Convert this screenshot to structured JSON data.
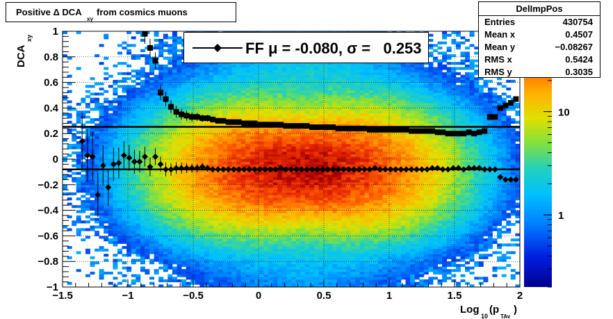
{
  "title_box": {
    "main": "Positive Δ DCA",
    "sub": "xy",
    "suffix": "from cosmics muons"
  },
  "stats": {
    "name": "DelImpPos",
    "rows": [
      {
        "label": "Entries",
        "value": "430754"
      },
      {
        "label": "Mean x",
        "value": "0.4507"
      },
      {
        "label": "Mean y",
        "value": "−0.08267"
      },
      {
        "label": "RMS x",
        "value": "0.5424"
      },
      {
        "label": "RMS y",
        "value": "0.3035"
      }
    ]
  },
  "legend": {
    "text": "FF μ = -0.080, σ =   0.253"
  },
  "chart_data": {
    "type": "heatmap",
    "x_range": [
      -1.5,
      2
    ],
    "y_range": [
      -1,
      1
    ],
    "ylabel": "DCA",
    "ylabel_sub": "xy",
    "xlabel": "Log",
    "xlabel_sub": "10",
    "xlabel_rest": "(p",
    "xlabel_sub2": "TAv",
    "xlabel_end": ")",
    "x_ticks": [
      "−1.5",
      "−1",
      "−0.5",
      "0",
      "0.5",
      "1",
      "1.5",
      "2"
    ],
    "x_tick_values": [
      -1.5,
      -1,
      -0.5,
      0,
      0.5,
      1,
      1.5,
      2
    ],
    "y_ticks": [
      "−1",
      "−0.8",
      "−0.6",
      "−0.4",
      "−0.2",
      "0",
      "0.2",
      "0.4",
      "0.6",
      "0.8",
      "1"
    ],
    "y_tick_values": [
      -1,
      -0.8,
      -0.6,
      -0.4,
      -0.2,
      0,
      0.2,
      0.4,
      0.6,
      0.8,
      1
    ],
    "colorbar_ticks": [
      "1",
      "10"
    ],
    "colorbar_tick_values": [
      1,
      10
    ],
    "colorbar_range": [
      0.2,
      60
    ],
    "log_z": true,
    "grid": true,
    "reference_lines": [
      0.253,
      -0.08
    ],
    "series": [
      {
        "marker": "square",
        "x": [
          -0.87,
          -0.83,
          -0.79,
          -0.75,
          -0.71,
          -0.67,
          -0.63,
          -0.59,
          -0.55,
          -0.51,
          -0.47,
          -0.43,
          -0.39,
          -0.35,
          -0.31,
          -0.27,
          -0.23,
          -0.19,
          -0.15,
          -0.11,
          -0.07,
          -0.03,
          0.01,
          0.05,
          0.09,
          0.13,
          0.17,
          0.21,
          0.25,
          0.29,
          0.33,
          0.37,
          0.41,
          0.45,
          0.49,
          0.53,
          0.57,
          0.61,
          0.65,
          0.69,
          0.73,
          0.77,
          0.81,
          0.85,
          0.89,
          0.93,
          0.97,
          1.01,
          1.05,
          1.09,
          1.13,
          1.17,
          1.21,
          1.25,
          1.29,
          1.33,
          1.37,
          1.41,
          1.45,
          1.49,
          1.53,
          1.57,
          1.61,
          1.65,
          1.69,
          1.73,
          1.77,
          1.81,
          1.85,
          1.89,
          1.93,
          1.97
        ],
        "y": [
          0.98,
          0.87,
          0.77,
          0.52,
          0.47,
          0.41,
          0.37,
          0.35,
          0.34,
          0.33,
          0.33,
          0.32,
          0.32,
          0.31,
          0.3,
          0.3,
          0.29,
          0.29,
          0.29,
          0.28,
          0.28,
          0.28,
          0.27,
          0.27,
          0.27,
          0.27,
          0.27,
          0.26,
          0.26,
          0.26,
          0.26,
          0.26,
          0.25,
          0.25,
          0.25,
          0.25,
          0.25,
          0.24,
          0.24,
          0.24,
          0.24,
          0.24,
          0.24,
          0.23,
          0.23,
          0.23,
          0.23,
          0.23,
          0.23,
          0.23,
          0.23,
          0.22,
          0.22,
          0.22,
          0.22,
          0.22,
          0.21,
          0.21,
          0.2,
          0.2,
          0.2,
          0.2,
          0.21,
          0.2,
          0.21,
          0.22,
          0.33,
          0.33,
          0.4,
          0.42,
          0.44,
          0.47
        ]
      },
      {
        "marker": "diamond",
        "x": [
          -1.35,
          -1.31,
          -1.27,
          -1.23,
          -1.19,
          -1.15,
          -1.11,
          -1.07,
          -1.03,
          -0.99,
          -0.95,
          -0.91,
          -0.87,
          -0.83,
          -0.79,
          -0.75,
          -0.71,
          -0.67,
          -0.63,
          -0.59,
          -0.55,
          -0.51,
          -0.47,
          -0.43,
          -0.39,
          -0.35,
          -0.31,
          -0.27,
          -0.23,
          -0.19,
          -0.15,
          -0.11,
          -0.07,
          -0.03,
          0.01,
          0.05,
          0.09,
          0.13,
          0.17,
          0.21,
          0.25,
          0.29,
          0.33,
          0.37,
          0.41,
          0.45,
          0.49,
          0.53,
          0.57,
          0.61,
          0.65,
          0.69,
          0.73,
          0.77,
          0.81,
          0.85,
          0.89,
          0.93,
          0.97,
          1.01,
          1.05,
          1.09,
          1.13,
          1.17,
          1.21,
          1.25,
          1.29,
          1.33,
          1.37,
          1.41,
          1.45,
          1.49,
          1.53,
          1.57,
          1.61,
          1.65,
          1.69,
          1.73,
          1.77,
          1.81,
          1.85,
          1.89,
          1.93,
          1.97
        ],
        "y": [
          0.14,
          0.03,
          0.02,
          -0.28,
          -0.05,
          -0.22,
          -0.04,
          -0.03,
          0.03,
          0.01,
          -0.02,
          -0.02,
          0.02,
          -0.06,
          0.02,
          -0.04,
          -0.08,
          -0.08,
          -0.07,
          -0.07,
          -0.07,
          -0.07,
          -0.07,
          -0.06,
          -0.07,
          -0.08,
          -0.08,
          -0.08,
          -0.08,
          -0.08,
          -0.08,
          -0.08,
          -0.08,
          -0.08,
          -0.08,
          -0.08,
          -0.08,
          -0.08,
          -0.07,
          -0.08,
          -0.08,
          -0.08,
          -0.08,
          -0.08,
          -0.08,
          -0.08,
          -0.08,
          -0.08,
          -0.08,
          -0.08,
          -0.08,
          -0.08,
          -0.08,
          -0.08,
          -0.08,
          -0.08,
          -0.07,
          -0.08,
          -0.08,
          -0.08,
          -0.08,
          -0.08,
          -0.08,
          -0.08,
          -0.08,
          -0.08,
          -0.08,
          -0.07,
          -0.07,
          -0.08,
          -0.08,
          -0.07,
          -0.07,
          -0.08,
          -0.07,
          -0.07,
          -0.07,
          -0.08,
          -0.08,
          -0.08,
          -0.14,
          -0.16,
          -0.16,
          -0.16
        ]
      }
    ]
  }
}
